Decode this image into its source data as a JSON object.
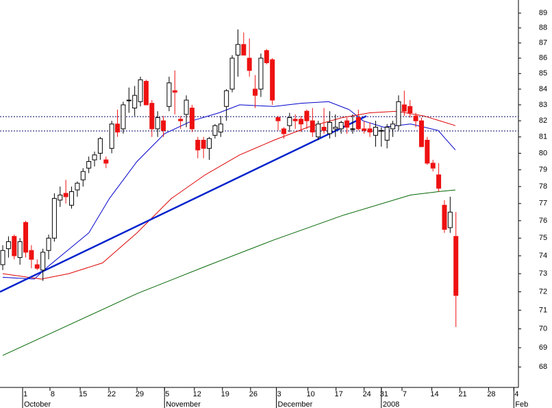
{
  "chart_data": {
    "type": "candlestick",
    "log": true,
    "xlim": [
      -0.48,
      89.9
    ],
    "ylim": [
      66.95,
      89.89
    ],
    "yticks": [
      68,
      69,
      70,
      71,
      72,
      73,
      74,
      75,
      76,
      77,
      78,
      79,
      80,
      81,
      82,
      83,
      84,
      85,
      86,
      87,
      88,
      89
    ],
    "xticks": [
      {
        "value": 3.46,
        "label": "1"
      },
      {
        "value": 8.23,
        "label": "8"
      },
      {
        "value": 13.5,
        "label": "15"
      },
      {
        "value": 18.5,
        "label": "22"
      },
      {
        "value": 23.4,
        "label": "29"
      },
      {
        "value": 28.2,
        "label": "5"
      },
      {
        "value": 33.4,
        "label": "12"
      },
      {
        "value": 38.3,
        "label": "19"
      },
      {
        "value": 43.2,
        "label": "26"
      },
      {
        "value": 47.7,
        "label": "3"
      },
      {
        "value": 53.2,
        "label": "10"
      },
      {
        "value": 58.1,
        "label": "17"
      },
      {
        "value": 63.0,
        "label": "24"
      },
      {
        "value": 66.0,
        "label": "31"
      },
      {
        "value": 69.6,
        "label": "7"
      },
      {
        "value": 74.8,
        "label": "14"
      },
      {
        "value": 79.7,
        "label": "21"
      },
      {
        "value": 84.7,
        "label": "28"
      },
      {
        "value": 89.1,
        "label": "4"
      }
    ],
    "month_labels": [
      {
        "value": 3.46,
        "label": "October"
      },
      {
        "value": 28.2,
        "label": "November"
      },
      {
        "value": 47.7,
        "label": "December"
      },
      {
        "value": 66.0,
        "label": "2008"
      },
      {
        "value": 89.1,
        "label": "Feb"
      }
    ],
    "up_color": "#ffffff",
    "down_color": "#ee1111",
    "x": [
      0,
      1,
      2,
      3,
      4,
      5,
      6,
      7,
      8,
      9,
      10,
      11,
      12,
      13,
      14,
      15,
      16,
      17,
      18,
      19,
      20,
      21,
      22,
      23,
      24,
      25,
      26,
      27,
      28,
      29,
      30,
      31,
      32,
      33,
      34,
      35,
      36,
      37,
      38,
      39,
      40,
      41,
      42,
      43,
      44,
      45,
      46,
      47,
      48,
      49,
      50,
      51,
      52,
      53,
      54,
      55,
      56,
      57,
      58,
      59,
      60,
      61,
      62,
      63,
      64,
      65,
      66,
      67,
      68,
      69,
      70,
      71,
      72,
      73,
      74,
      75,
      76,
      77,
      78,
      79
    ],
    "open": [
      73.5,
      74.4,
      75.1,
      73.9,
      75.9,
      74.3,
      73.5,
      73.2,
      74.3,
      75.0,
      77.2,
      77.6,
      76.9,
      77.8,
      78.4,
      79.1,
      79.6,
      80.0,
      79.6,
      80.3,
      81.8,
      81.5,
      83.3,
      82.8,
      83.2,
      84.5,
      83.1,
      81.5,
      82.0,
      82.9,
      83.9,
      82.1,
      82.4,
      82.8,
      80.8,
      80.8,
      80.3,
      81.1,
      81.3,
      82.9,
      84.0,
      86.2,
      86.9,
      86.0,
      84.0,
      84.0,
      86.5,
      85.9,
      82.2,
      81.5,
      81.7,
      82.1,
      82.1,
      82.6,
      82.0,
      81.0,
      81.6,
      81.2,
      81.5,
      81.5,
      82.0,
      81.5,
      82.2,
      81.5,
      81.5,
      81.1,
      81.4,
      80.8,
      81.5,
      81.7,
      83.0,
      82.9,
      82.3,
      82.0,
      80.8,
      79.4,
      78.7,
      76.9,
      75.6,
      75.1
    ],
    "high": [
      74.6,
      75.1,
      75.2,
      75.0,
      76.0,
      74.6,
      73.8,
      74.4,
      75.2,
      77.6,
      78.0,
      78.4,
      78.0,
      78.3,
      79.1,
      79.8,
      80.1,
      81.0,
      79.8,
      82.0,
      82.7,
      83.2,
      84.1,
      84.2,
      84.8,
      84.6,
      83.3,
      82.6,
      82.3,
      84.8,
      85.2,
      82.3,
      83.6,
      83.0,
      81.0,
      81.0,
      81.0,
      81.8,
      82.3,
      84.0,
      86.2,
      87.9,
      87.7,
      87.3,
      84.9,
      86.3,
      86.6,
      86.0,
      82.3,
      81.6,
      82.5,
      82.4,
      82.3,
      82.7,
      82.8,
      82.0,
      82.8,
      82.6,
      82.4,
      82.0,
      82.2,
      82.4,
      82.7,
      82.0,
      81.9,
      82.0,
      81.6,
      81.8,
      82.0,
      83.6,
      83.9,
      83.3,
      82.5,
      82.2,
      81.0,
      79.6,
      79.4,
      77.2,
      77.4,
      76.5
    ],
    "low": [
      73.2,
      73.9,
      73.8,
      73.5,
      73.9,
      73.3,
      73.2,
      72.6,
      73.8,
      74.8,
      76.8,
      77.0,
      76.7,
      77.4,
      78.0,
      78.8,
      79.2,
      79.6,
      79.1,
      80.0,
      81.0,
      81.2,
      82.5,
      82.3,
      82.9,
      83.0,
      81.0,
      81.0,
      81.0,
      82.6,
      82.4,
      81.5,
      81.6,
      81.3,
      79.7,
      79.7,
      79.6,
      80.9,
      81.0,
      82.0,
      83.8,
      84.8,
      86.2,
      84.8,
      82.8,
      83.5,
      85.6,
      83.0,
      81.4,
      80.9,
      81.3,
      81.5,
      81.3,
      81.5,
      81.0,
      80.8,
      81.2,
      80.9,
      81.0,
      81.2,
      81.2,
      81.2,
      81.4,
      81.2,
      81.0,
      80.4,
      80.4,
      80.3,
      81.0,
      81.4,
      82.3,
      82.2,
      81.6,
      80.5,
      79.3,
      78.9,
      77.7,
      75.3,
      75.3,
      70.1
    ],
    "close": [
      74.3,
      74.8,
      74.0,
      74.8,
      74.2,
      73.8,
      73.3,
      74.2,
      75.0,
      77.3,
      77.5,
      77.4,
      77.7,
      78.2,
      78.9,
      79.5,
      79.9,
      80.9,
      79.4,
      81.8,
      81.3,
      83.0,
      83.3,
      83.6,
      84.6,
      83.0,
      81.5,
      82.2,
      81.4,
      84.4,
      83.8,
      82.0,
      83.3,
      81.5,
      80.2,
      80.3,
      80.9,
      81.7,
      81.8,
      83.9,
      86.0,
      86.9,
      86.2,
      85.2,
      83.6,
      86.0,
      85.7,
      83.3,
      82.0,
      81.2,
      82.2,
      82.0,
      81.8,
      82.0,
      81.3,
      81.8,
      81.4,
      81.9,
      81.6,
      81.9,
      81.6,
      81.5,
      81.5,
      81.4,
      81.3,
      81.6,
      81.4,
      81.6,
      81.8,
      83.2,
      82.6,
      82.5,
      82.0,
      80.4,
      79.4,
      79.1,
      77.9,
      75.5,
      76.5,
      71.8
    ],
    "lines": [
      {
        "color": "#0000cc",
        "width": 1,
        "x": [
          0,
          5.5,
          7.9,
          15,
          18.6,
          23.4,
          28.2,
          33,
          37.7,
          41.3,
          47.3,
          52,
          56.8,
          60.4,
          62.8,
          66.4,
          71.1,
          75.9,
          78.9
        ],
        "values": [
          72.8,
          72.7,
          73.4,
          75.3,
          77.3,
          79.5,
          81.2,
          82.0,
          82.5,
          83.0,
          82.9,
          83.1,
          83.2,
          82.7,
          82.0,
          81.6,
          81.8,
          81.4,
          80.2
        ]
      },
      {
        "color": "#dd0000",
        "width": 1,
        "x": [
          0,
          6.7,
          11.5,
          17.4,
          23.4,
          29.4,
          35.3,
          41.3,
          47.3,
          53.2,
          59.2,
          64,
          68.7,
          73.5,
          78.9
        ],
        "values": [
          73.0,
          72.7,
          73.0,
          73.6,
          75.3,
          77.3,
          78.7,
          79.9,
          80.8,
          81.6,
          82.2,
          82.5,
          82.6,
          82.3,
          81.7
        ]
      },
      {
        "color": "#006600",
        "width": 1,
        "x": [
          0,
          11.5,
          23.4,
          35.3,
          47.3,
          59.2,
          71.1,
          75.9,
          78.9
        ],
        "values": [
          68.6,
          70.2,
          71.9,
          73.4,
          74.9,
          76.3,
          77.5,
          77.7,
          77.8
        ]
      },
      {
        "color": "#0022cc",
        "width": 2.5,
        "x": [
          -0.48,
          63.4
        ],
        "values": [
          72.0,
          82.3
        ]
      }
    ],
    "hlines": [
      82.26,
      81.37
    ],
    "hline_color": "#000066"
  }
}
